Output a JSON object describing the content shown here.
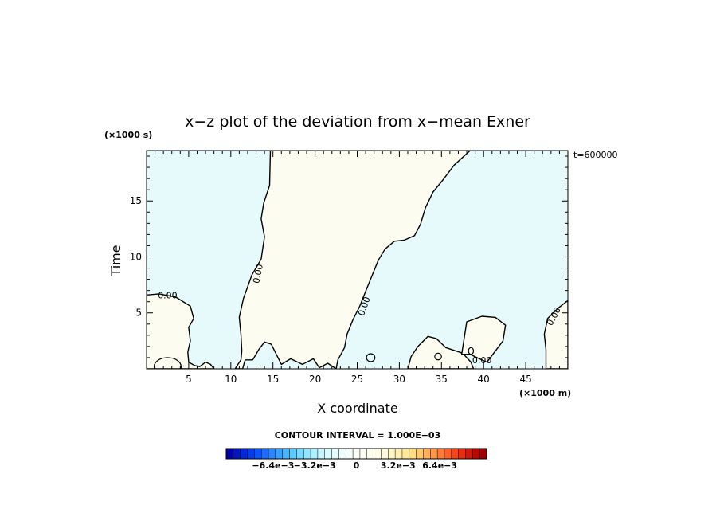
{
  "chart_data": {
    "type": "heatmap",
    "title": "x−z plot of the deviation from x−mean Exner",
    "xlabel": "X coordinate",
    "ylabel": "Time",
    "x_unit": "(×1000 m)",
    "y_unit": "(×1000 s)",
    "annotation": "t=600000",
    "xlim": [
      0,
      50
    ],
    "ylim": [
      0,
      19.5
    ],
    "xticks": [
      5,
      10,
      15,
      20,
      25,
      30,
      35,
      40,
      45
    ],
    "yticks": [
      5,
      10,
      15
    ],
    "contour_level_label": "0.00",
    "contour_labels": [
      {
        "text": "0.00",
        "x": 2.5,
        "y": 6.6
      },
      {
        "text": "0.00",
        "x": 13.2,
        "y": 8.5
      },
      {
        "text": "0.00",
        "x": 25.8,
        "y": 5.6
      },
      {
        "text": "0.00",
        "x": 39.8,
        "y": 0.8
      },
      {
        "text": "0.00",
        "x": 48.3,
        "y": 4.7
      }
    ],
    "regions": [
      {
        "sign": "positive",
        "color": "#fcfcf0",
        "polygons": [
          [
            [
              0,
              0
            ],
            [
              0,
              6.6
            ],
            [
              1.5,
              6.7
            ],
            [
              3.5,
              6.4
            ],
            [
              5.2,
              5.6
            ],
            [
              5.6,
              4.5
            ],
            [
              5,
              3.7
            ],
            [
              5.2,
              2.5
            ],
            [
              4.9,
              1.5
            ],
            [
              5,
              0.6
            ],
            [
              5.7,
              0.3
            ],
            [
              6.3,
              0.2
            ],
            [
              7,
              0.6
            ],
            [
              7.6,
              0.4
            ],
            [
              8,
              0
            ]
          ],
          [
            [
              10.5,
              0
            ],
            [
              11.2,
              0.8
            ],
            [
              11.3,
              1.6
            ],
            [
              11.2,
              3.1
            ],
            [
              11,
              4.6
            ],
            [
              11.5,
              6.3
            ],
            [
              12.5,
              8.4
            ],
            [
              13.6,
              9.8
            ],
            [
              14,
              11.8
            ],
            [
              13.6,
              13.4
            ],
            [
              13.9,
              14.8
            ],
            [
              14.6,
              16.4
            ],
            [
              14.7,
              19.5
            ],
            [
              38.4,
              19.5
            ],
            [
              36.5,
              18.2
            ],
            [
              35.2,
              16.9
            ],
            [
              34,
              15.8
            ],
            [
              33.1,
              14.4
            ],
            [
              32.5,
              12.9
            ],
            [
              31.8,
              11.9
            ],
            [
              30.6,
              11.5
            ],
            [
              29.4,
              11.4
            ],
            [
              28.3,
              10.7
            ],
            [
              27.5,
              9.7
            ],
            [
              26.8,
              8.4
            ],
            [
              26.1,
              7.1
            ],
            [
              25.3,
              5.6
            ],
            [
              24.5,
              4.4
            ],
            [
              23.8,
              3.1
            ],
            [
              23.5,
              1.9
            ],
            [
              22.7,
              0.8
            ],
            [
              22.5,
              0
            ],
            [
              21.5,
              0.5
            ],
            [
              20.5,
              0.1
            ],
            [
              19.8,
              0.9
            ],
            [
              18.5,
              0.4
            ],
            [
              17.1,
              0.9
            ],
            [
              16,
              0.4
            ],
            [
              15.4,
              1.3
            ],
            [
              14.8,
              2.2
            ],
            [
              14,
              2.4
            ],
            [
              13.3,
              1.7
            ],
            [
              12.6,
              0.8
            ],
            [
              11.7,
              0.8
            ],
            [
              11.4,
              0
            ]
          ],
          [
            [
              31,
              0
            ],
            [
              31.4,
              1.1
            ],
            [
              32.2,
              2
            ],
            [
              33.4,
              2.9
            ],
            [
              34.4,
              2.7
            ],
            [
              35.5,
              1.9
            ],
            [
              37.5,
              1.4
            ],
            [
              38.5,
              0.6
            ],
            [
              38.8,
              0
            ]
          ],
          [
            [
              38,
              4.2
            ],
            [
              39.8,
              4.7
            ],
            [
              41.4,
              4.6
            ],
            [
              42.6,
              3.9
            ],
            [
              42.3,
              2.5
            ],
            [
              41.2,
              1.4
            ],
            [
              40.4,
              0.6
            ],
            [
              39.5,
              0.9
            ],
            [
              38.4,
              1.3
            ],
            [
              37.4,
              1.3
            ]
          ],
          [
            [
              47.4,
              0
            ],
            [
              47.4,
              1.7
            ],
            [
              47.2,
              3.1
            ],
            [
              47.6,
              4.5
            ],
            [
              48.8,
              5.4
            ],
            [
              50,
              6.1
            ],
            [
              50,
              0
            ]
          ]
        ]
      },
      {
        "sign": "negative",
        "color": "#e6fafc",
        "polygons": []
      }
    ],
    "colorbar": {
      "label": "CONTOUR INTERVAL = 1.000E−03",
      "tick_labels": [
        "−6.4e−3",
        "−3.2e−3",
        "0",
        "3.2e−3",
        "6.4e−3"
      ],
      "tick_values": [
        -0.0064,
        -0.0032,
        0,
        0.0032,
        0.0064
      ],
      "min": -0.01,
      "max": 0.01,
      "colors": [
        "#0000a8",
        "#0014c0",
        "#0028d8",
        "#003cee",
        "#0852ff",
        "#1a6cff",
        "#2886ff",
        "#38a0ff",
        "#48b6ff",
        "#5ccaff",
        "#74daff",
        "#90e6ff",
        "#acf0ff",
        "#c6f6ff",
        "#d8faff",
        "#e6fcfc",
        "#eefcfc",
        "#f4fcfc",
        "#fafcfa",
        "#fdfdf6",
        "#fefef0",
        "#fefce6",
        "#fefadc",
        "#fef6c8",
        "#fff0b0",
        "#ffe898",
        "#ffdc80",
        "#ffc86c",
        "#ffb058",
        "#ff9848",
        "#ff7c38",
        "#ff6028",
        "#f84418",
        "#e82c10",
        "#d01808",
        "#b80800",
        "#a00000"
      ]
    }
  }
}
